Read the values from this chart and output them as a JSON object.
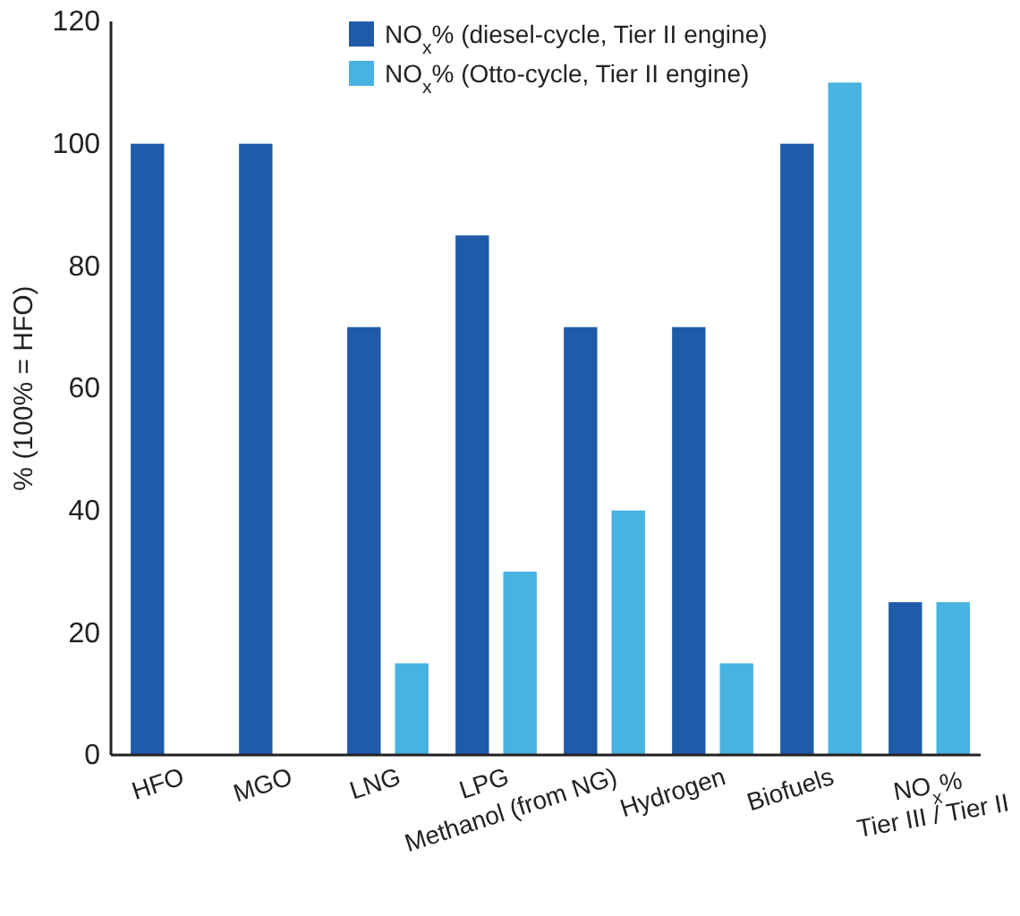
{
  "chart_data": {
    "type": "bar",
    "ylabel": "% (100% = HFO)",
    "categories": [
      "HFO",
      "MGO",
      "LNG",
      "LPG",
      "Methanol (from NG)",
      "Hydrogen",
      "Biofuels",
      "NO$_{x}$%\nTier III / Tier II"
    ],
    "series": [
      {
        "name": "NO$_{x}$% (diesel-cycle, Tier II engine)",
        "color": "#1f5ba8",
        "values": [
          100,
          100,
          70,
          85,
          70,
          70,
          100,
          25
        ]
      },
      {
        "name": "NO$_{x}$% (Otto-cycle, Tier II engine)",
        "color": "#48b2e0",
        "values": [
          null,
          null,
          15,
          30,
          40,
          15,
          110,
          25
        ]
      }
    ],
    "ylim": [
      0,
      120
    ],
    "yticks": [
      0,
      20,
      40,
      60,
      80,
      100,
      120
    ],
    "grid": false,
    "legend": "top"
  }
}
